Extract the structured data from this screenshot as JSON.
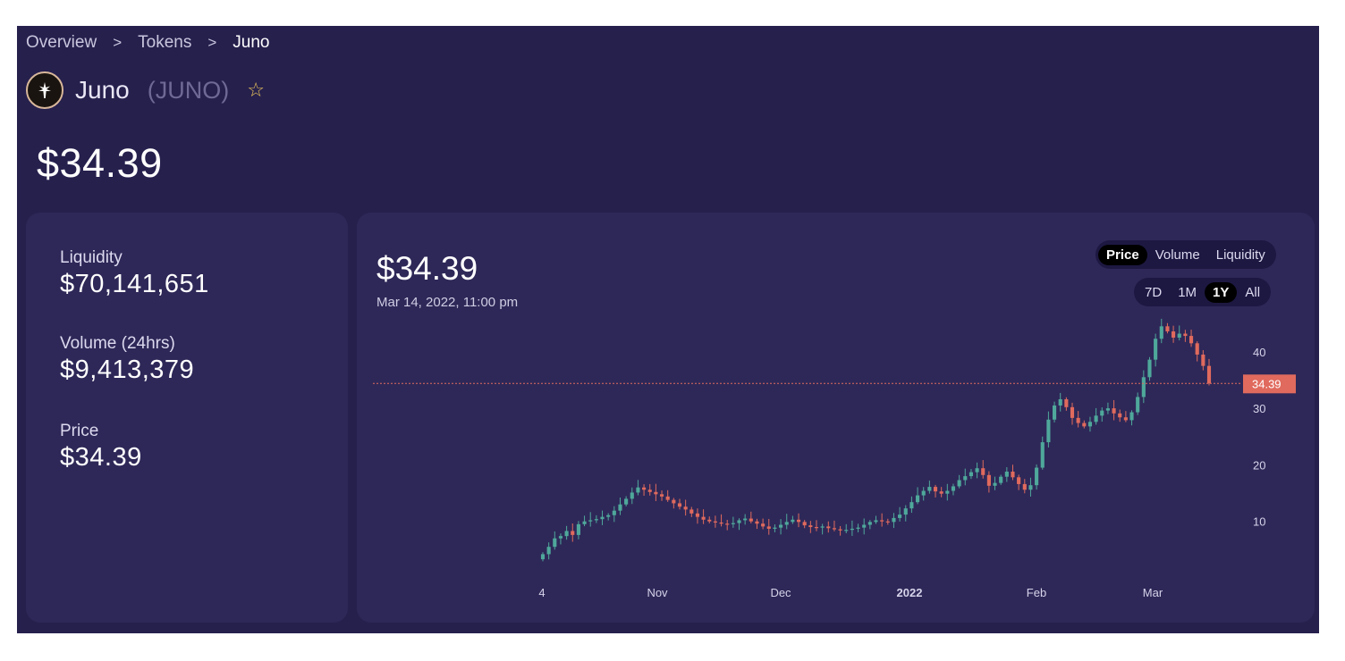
{
  "breadcrumb": {
    "items": [
      "Overview",
      "Tokens",
      "Juno"
    ],
    "separator": ">"
  },
  "token": {
    "name": "Juno",
    "symbol": "(JUNO)",
    "price": "$34.39"
  },
  "stats": [
    {
      "label": "Liquidity",
      "value": "$70,141,651"
    },
    {
      "label": "Volume (24hrs)",
      "value": "$9,413,379"
    },
    {
      "label": "Price",
      "value": "$34.39"
    }
  ],
  "chart_header": {
    "price": "$34.39",
    "date": "Mar 14, 2022, 11:00 pm"
  },
  "chart_type_toggle": {
    "options": [
      "Price",
      "Volume",
      "Liquidity"
    ],
    "selected": "Price"
  },
  "range_toggle": {
    "options": [
      "7D",
      "1M",
      "1Y",
      "All"
    ],
    "selected": "1Y"
  },
  "colors": {
    "up": "#4fa89b",
    "down": "#e06a5d",
    "background": "#26204d",
    "card": "#2e2858",
    "price_line": "#e06a5d"
  },
  "chart_data": {
    "type": "candlestick",
    "y_ticks": [
      10,
      20,
      30,
      40
    ],
    "x_ticks": [
      {
        "label": "4",
        "bold": false
      },
      {
        "label": "Nov",
        "bold": false
      },
      {
        "label": "Dec",
        "bold": false
      },
      {
        "label": "2022",
        "bold": true
      },
      {
        "label": "Feb",
        "bold": false
      },
      {
        "label": "Mar",
        "bold": false
      }
    ],
    "current_price_label": "34.39",
    "current_price": 34.39,
    "closes": [
      4.2,
      5.5,
      7.0,
      7.4,
      8.3,
      7.6,
      9.5,
      10.0,
      10.2,
      10.4,
      10.8,
      11.1,
      11.9,
      13.0,
      14.0,
      15.1,
      16.0,
      15.6,
      15.2,
      14.8,
      14.4,
      13.8,
      13.2,
      12.6,
      12.1,
      11.4,
      10.8,
      10.3,
      10.0,
      9.8,
      9.6,
      9.5,
      9.7,
      10.2,
      10.5,
      10.0,
      9.6,
      9.1,
      8.7,
      8.9,
      9.4,
      9.9,
      10.3,
      9.9,
      9.3,
      9.0,
      8.9,
      9.1,
      8.8,
      8.6,
      8.4,
      8.5,
      8.7,
      8.9,
      9.4,
      9.9,
      10.2,
      10.0,
      9.9,
      10.6,
      11.2,
      12.3,
      13.4,
      14.6,
      15.4,
      16.1,
      15.3,
      14.9,
      15.4,
      16.2,
      17.3,
      18.0,
      18.7,
      19.4,
      18.2,
      16.3,
      16.8,
      17.9,
      18.8,
      17.8,
      16.6,
      15.6,
      16.4,
      19.5,
      24.0,
      28.0,
      30.5,
      31.6,
      30.2,
      28.3,
      27.4,
      26.8,
      27.6,
      28.7,
      29.6,
      30.0,
      29.1,
      28.4,
      27.9,
      29.3,
      32.0,
      35.5,
      38.6,
      42.3,
      44.5,
      43.6,
      42.5,
      43.2,
      42.8,
      41.5,
      39.5,
      37.5,
      34.39
    ]
  }
}
